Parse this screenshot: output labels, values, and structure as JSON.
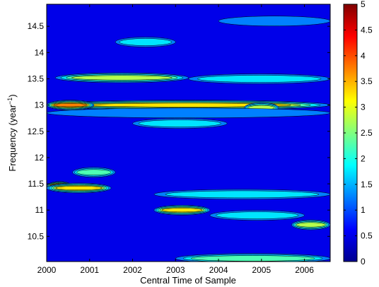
{
  "chart_data": {
    "type": "heatmap",
    "title": "",
    "xlabel": "Central Time of Sample",
    "ylabel": "Frequency (year",
    "ylabel_sup": "−1",
    "ylabel_close": ")",
    "xlim": [
      2000,
      2006.6
    ],
    "ylim": [
      10.02,
      14.92
    ],
    "xticks": [
      2000,
      2001,
      2002,
      2003,
      2004,
      2005,
      2006
    ],
    "xtick_labels": [
      "2000",
      "2001",
      "2002",
      "2003",
      "2004",
      "2005",
      "2006"
    ],
    "yticks": [
      10.5,
      11,
      11.5,
      12,
      12.5,
      13,
      13.5,
      14,
      14.5
    ],
    "ytick_labels": [
      "10.5",
      "11",
      "11.5",
      "12",
      "12.5",
      "13",
      "13.5",
      "14",
      "14.5"
    ],
    "colorbar": {
      "colormap": "jet",
      "range": [
        0,
        5
      ],
      "ticks": [
        0,
        0.5,
        1,
        1.5,
        2,
        2.5,
        3,
        3.5,
        4,
        4.5,
        5
      ],
      "tick_labels": [
        "0",
        "0.5",
        "1",
        "1.5",
        "2",
        "2.5",
        "3",
        "3.5",
        "4",
        "4.5",
        "5"
      ]
    },
    "background_level": 0.5,
    "features": [
      {
        "x": [
          2000.0,
          2006.6
        ],
        "y": 13.0,
        "peak": 3.0
      },
      {
        "x": [
          2000.0,
          2001.1
        ],
        "y": 13.0,
        "peak": 3.8
      },
      {
        "x": [
          2000.2,
          2003.3
        ],
        "y": 13.52,
        "peak": 2.9
      },
      {
        "x": [
          2003.3,
          2006.6
        ],
        "y": 13.5,
        "peak": 1.9
      },
      {
        "x": [
          2004.6,
          2005.4
        ],
        "y": 12.95,
        "peak": 2.9
      },
      {
        "x": [
          2000.0,
          2000.6
        ],
        "y": 11.45,
        "peak": 4.7
      },
      {
        "x": [
          2000.0,
          2001.5
        ],
        "y": 11.42,
        "peak": 3.0
      },
      {
        "x": [
          2002.5,
          2006.6
        ],
        "y": 11.3,
        "peak": 1.7
      },
      {
        "x": [
          2002.5,
          2003.8
        ],
        "y": 11.0,
        "peak": 3.1
      },
      {
        "x": [
          2003.8,
          2006.0
        ],
        "y": 10.9,
        "peak": 1.6
      },
      {
        "x": [
          2005.7,
          2006.6
        ],
        "y": 10.72,
        "peak": 2.9
      },
      {
        "x": [
          2003.0,
          2006.6
        ],
        "y": 10.08,
        "peak": 2.2
      },
      {
        "x": [
          2002.0,
          2004.2
        ],
        "y": 12.65,
        "peak": 1.8
      },
      {
        "x": [
          2001.6,
          2003.0
        ],
        "y": 14.2,
        "peak": 1.7
      },
      {
        "x": [
          2004.0,
          2006.6
        ],
        "y": 14.6,
        "peak": 1.2
      },
      {
        "x": [
          2000.6,
          2001.6
        ],
        "y": 11.72,
        "peak": 2.1
      },
      {
        "x": [
          2000.0,
          2006.6
        ],
        "y": 12.85,
        "peak": 1.4
      }
    ]
  }
}
